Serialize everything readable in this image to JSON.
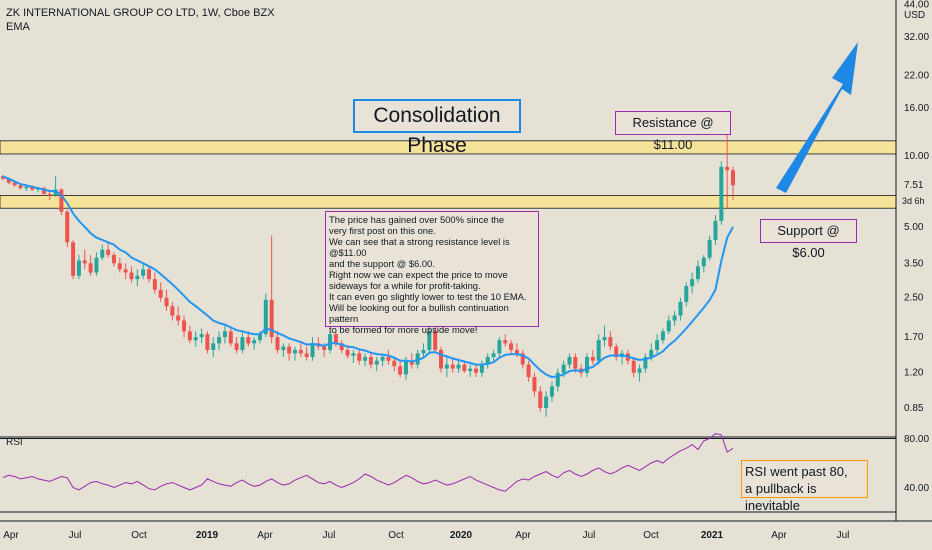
{
  "header": {
    "title": "ZK INTERNATIONAL GROUP CO LTD, 1W, Cboe BZX",
    "indicator": "EMA"
  },
  "annotations": {
    "consolidation": "Consolidation Phase",
    "resistance": "Resistance @ $11.00",
    "support": "Support @ $6.00",
    "note": "The price has gained over 500% since the\nvery first post on this one.\nWe can see that a strong resistance level is @$11.00\nand the support @ $6.00.\nRight now we can expect the price to move\nsideways for a while for profit-taking.\nIt can even go slightly lower to test the 10 EMA.\nWill be looking out for a bullish continuation pattern\nto be formed for more upside move!",
    "rsi_note": "RSI went past 80,\na pullback is inevitable"
  },
  "colors": {
    "background": "#e5e1d5",
    "bull": "#26a69a",
    "bear": "#ef5350",
    "ema": "#2196f3",
    "rsi": "#9c27b0",
    "zone": "#f6e39a",
    "arrow": "#1e88e5"
  },
  "chart_data": {
    "type": "candlestick",
    "y_scale": "log",
    "y_axis_label": "USD",
    "y_ticks": [
      "0.85",
      "1.20",
      "1.70",
      "2.50",
      "3.50",
      "5.00",
      "10.00",
      "16.00",
      "22.00",
      "32.00",
      "44.00"
    ],
    "last_price": "7.51",
    "last_price_countdown": "3d 6h",
    "x_ticks": [
      "Apr",
      "Jul",
      "Oct",
      "2019",
      "Apr",
      "Jul",
      "Oct",
      "2020",
      "Apr",
      "Jul",
      "Oct",
      "2021",
      "Apr",
      "Jul"
    ],
    "resistance_zone": [
      10.2,
      11.6
    ],
    "support_zone": [
      6.0,
      6.8
    ],
    "rsi": {
      "label": "RSI",
      "levels": [
        80,
        20
      ],
      "ticks": [
        "80.00",
        "40.00"
      ],
      "values": [
        48,
        50,
        49,
        47,
        48,
        49,
        47,
        46,
        45,
        47,
        49,
        48,
        40,
        38,
        41,
        44,
        45,
        43,
        42,
        40,
        42,
        44,
        43,
        45,
        42,
        39,
        38,
        41,
        43,
        44,
        42,
        40,
        38,
        40,
        42,
        47,
        45,
        43,
        42,
        41,
        44,
        46,
        43,
        41,
        42,
        45,
        47,
        44,
        42,
        43,
        46,
        48,
        50,
        47,
        44,
        43,
        45,
        42,
        40,
        42,
        44,
        47,
        51,
        49,
        46,
        44,
        42,
        44,
        47,
        50,
        48,
        45,
        43,
        44,
        46,
        44,
        42,
        43,
        45,
        47,
        49,
        46,
        44,
        42,
        40,
        38,
        37,
        41,
        45,
        47,
        46,
        49,
        51,
        53,
        50,
        48,
        52,
        54,
        51,
        49,
        51,
        54,
        56,
        53,
        51,
        53,
        56,
        58,
        56,
        54,
        57,
        60,
        62,
        60,
        64,
        67,
        70,
        72,
        75,
        71,
        78,
        80,
        84,
        83,
        69,
        72
      ]
    },
    "candles": [
      [
        8.2,
        8.3,
        7.9,
        8.0
      ],
      [
        8.0,
        8.1,
        7.6,
        7.7
      ],
      [
        7.7,
        7.8,
        7.4,
        7.5
      ],
      [
        7.5,
        7.6,
        7.2,
        7.3
      ],
      [
        7.3,
        7.5,
        7.1,
        7.4
      ],
      [
        7.4,
        7.5,
        7.1,
        7.2
      ],
      [
        7.2,
        7.4,
        7.0,
        7.3
      ],
      [
        7.3,
        7.4,
        6.8,
        6.9
      ],
      [
        6.9,
        7.1,
        6.5,
        6.8
      ],
      [
        6.8,
        8.2,
        6.7,
        7.2
      ],
      [
        7.2,
        7.3,
        5.6,
        5.8
      ],
      [
        5.8,
        5.9,
        4.1,
        4.3
      ],
      [
        4.3,
        4.4,
        3.0,
        3.1
      ],
      [
        3.1,
        3.8,
        3.0,
        3.6
      ],
      [
        3.6,
        4.0,
        3.3,
        3.5
      ],
      [
        3.5,
        3.8,
        3.1,
        3.2
      ],
      [
        3.2,
        3.9,
        3.1,
        3.7
      ],
      [
        3.7,
        4.2,
        3.6,
        4.0
      ],
      [
        4.0,
        4.3,
        3.7,
        3.8
      ],
      [
        3.8,
        3.9,
        3.4,
        3.5
      ],
      [
        3.5,
        3.7,
        3.2,
        3.3
      ],
      [
        3.3,
        3.5,
        3.0,
        3.2
      ],
      [
        3.2,
        3.4,
        2.9,
        3.0
      ],
      [
        3.0,
        3.3,
        2.8,
        3.1
      ],
      [
        3.1,
        3.5,
        3.0,
        3.3
      ],
      [
        3.3,
        3.4,
        2.9,
        3.0
      ],
      [
        3.0,
        3.2,
        2.6,
        2.7
      ],
      [
        2.7,
        2.9,
        2.4,
        2.5
      ],
      [
        2.5,
        2.7,
        2.2,
        2.3
      ],
      [
        2.3,
        2.4,
        2.0,
        2.1
      ],
      [
        2.1,
        2.3,
        1.9,
        2.0
      ],
      [
        2.0,
        2.1,
        1.7,
        1.8
      ],
      [
        1.8,
        1.9,
        1.6,
        1.65
      ],
      [
        1.65,
        1.8,
        1.55,
        1.7
      ],
      [
        1.7,
        1.85,
        1.6,
        1.75
      ],
      [
        1.75,
        1.8,
        1.45,
        1.5
      ],
      [
        1.5,
        1.7,
        1.4,
        1.6
      ],
      [
        1.6,
        1.8,
        1.5,
        1.7
      ],
      [
        1.7,
        1.9,
        1.6,
        1.8
      ],
      [
        1.8,
        1.85,
        1.55,
        1.6
      ],
      [
        1.6,
        1.7,
        1.45,
        1.5
      ],
      [
        1.5,
        1.8,
        1.45,
        1.7
      ],
      [
        1.7,
        1.8,
        1.55,
        1.6
      ],
      [
        1.6,
        1.7,
        1.5,
        1.65
      ],
      [
        1.65,
        1.8,
        1.6,
        1.75
      ],
      [
        1.75,
        2.6,
        1.7,
        2.45
      ],
      [
        2.45,
        4.6,
        1.6,
        1.7
      ],
      [
        1.7,
        1.8,
        1.45,
        1.5
      ],
      [
        1.5,
        1.6,
        1.4,
        1.55
      ],
      [
        1.55,
        1.6,
        1.35,
        1.45
      ],
      [
        1.45,
        1.55,
        1.35,
        1.5
      ],
      [
        1.5,
        1.6,
        1.4,
        1.45
      ],
      [
        1.45,
        1.55,
        1.35,
        1.4
      ],
      [
        1.4,
        1.7,
        1.35,
        1.6
      ],
      [
        1.6,
        1.7,
        1.5,
        1.55
      ],
      [
        1.55,
        1.6,
        1.4,
        1.5
      ],
      [
        1.5,
        1.8,
        1.45,
        1.75
      ],
      [
        1.75,
        1.8,
        1.55,
        1.6
      ],
      [
        1.6,
        1.65,
        1.45,
        1.5
      ],
      [
        1.5,
        1.55,
        1.38,
        1.42
      ],
      [
        1.42,
        1.5,
        1.32,
        1.45
      ],
      [
        1.45,
        1.5,
        1.3,
        1.35
      ],
      [
        1.35,
        1.45,
        1.28,
        1.4
      ],
      [
        1.4,
        1.45,
        1.25,
        1.3
      ],
      [
        1.3,
        1.4,
        1.22,
        1.35
      ],
      [
        1.35,
        1.45,
        1.28,
        1.4
      ],
      [
        1.4,
        1.5,
        1.3,
        1.35
      ],
      [
        1.35,
        1.4,
        1.22,
        1.28
      ],
      [
        1.28,
        1.35,
        1.15,
        1.18
      ],
      [
        1.18,
        1.4,
        1.12,
        1.35
      ],
      [
        1.35,
        1.45,
        1.25,
        1.3
      ],
      [
        1.3,
        1.5,
        1.25,
        1.45
      ],
      [
        1.45,
        1.6,
        1.4,
        1.5
      ],
      [
        1.5,
        1.9,
        1.45,
        1.8
      ],
      [
        1.8,
        2.1,
        1.45,
        1.5
      ],
      [
        1.5,
        1.55,
        1.2,
        1.25
      ],
      [
        1.25,
        1.4,
        1.15,
        1.3
      ],
      [
        1.3,
        1.4,
        1.2,
        1.25
      ],
      [
        1.25,
        1.35,
        1.2,
        1.3
      ],
      [
        1.3,
        1.35,
        1.2,
        1.22
      ],
      [
        1.22,
        1.3,
        1.15,
        1.25
      ],
      [
        1.25,
        1.3,
        1.15,
        1.2
      ],
      [
        1.2,
        1.35,
        1.15,
        1.3
      ],
      [
        1.3,
        1.45,
        1.25,
        1.4
      ],
      [
        1.4,
        1.5,
        1.35,
        1.45
      ],
      [
        1.45,
        1.7,
        1.4,
        1.65
      ],
      [
        1.65,
        1.75,
        1.55,
        1.6
      ],
      [
        1.6,
        1.65,
        1.45,
        1.5
      ],
      [
        1.5,
        1.6,
        1.4,
        1.45
      ],
      [
        1.45,
        1.5,
        1.25,
        1.3
      ],
      [
        1.3,
        1.35,
        1.1,
        1.15
      ],
      [
        1.15,
        1.2,
        0.95,
        1.0
      ],
      [
        1.0,
        1.05,
        0.82,
        0.85
      ],
      [
        0.85,
        1.0,
        0.78,
        0.95
      ],
      [
        0.95,
        1.1,
        0.9,
        1.05
      ],
      [
        1.05,
        1.25,
        1.0,
        1.2
      ],
      [
        1.2,
        1.35,
        1.15,
        1.3
      ],
      [
        1.3,
        1.45,
        1.25,
        1.4
      ],
      [
        1.4,
        1.45,
        1.2,
        1.25
      ],
      [
        1.25,
        1.3,
        1.15,
        1.2
      ],
      [
        1.2,
        1.45,
        1.15,
        1.4
      ],
      [
        1.4,
        1.5,
        1.3,
        1.35
      ],
      [
        1.35,
        1.75,
        1.3,
        1.65
      ],
      [
        1.65,
        1.9,
        1.55,
        1.7
      ],
      [
        1.7,
        1.8,
        1.5,
        1.55
      ],
      [
        1.55,
        1.6,
        1.35,
        1.4
      ],
      [
        1.4,
        1.5,
        1.3,
        1.45
      ],
      [
        1.45,
        1.5,
        1.3,
        1.35
      ],
      [
        1.35,
        1.4,
        1.15,
        1.2
      ],
      [
        1.2,
        1.3,
        1.1,
        1.25
      ],
      [
        1.25,
        1.45,
        1.2,
        1.4
      ],
      [
        1.4,
        1.6,
        1.35,
        1.5
      ],
      [
        1.5,
        1.75,
        1.45,
        1.65
      ],
      [
        1.65,
        1.85,
        1.6,
        1.8
      ],
      [
        1.8,
        2.1,
        1.75,
        2.0
      ],
      [
        2.0,
        2.2,
        1.9,
        2.1
      ],
      [
        2.1,
        2.5,
        2.0,
        2.4
      ],
      [
        2.4,
        2.9,
        2.3,
        2.8
      ],
      [
        2.8,
        3.2,
        2.6,
        3.0
      ],
      [
        3.0,
        3.6,
        2.9,
        3.4
      ],
      [
        3.4,
        3.8,
        3.2,
        3.7
      ],
      [
        3.7,
        4.6,
        3.6,
        4.4
      ],
      [
        4.4,
        5.6,
        4.2,
        5.3
      ],
      [
        5.3,
        9.5,
        5.1,
        9.0
      ],
      [
        9.0,
        15.0,
        6.0,
        8.7
      ],
      [
        8.7,
        9.0,
        6.5,
        7.51
      ]
    ],
    "ema": [
      8.2,
      8.0,
      7.8,
      7.6,
      7.5,
      7.4,
      7.3,
      7.2,
      7.1,
      7.1,
      6.8,
      6.3,
      5.7,
      5.3,
      5.0,
      4.7,
      4.5,
      4.4,
      4.3,
      4.2,
      4.0,
      3.9,
      3.7,
      3.6,
      3.5,
      3.4,
      3.3,
      3.15,
      3.0,
      2.85,
      2.7,
      2.55,
      2.4,
      2.3,
      2.2,
      2.1,
      2.0,
      1.95,
      1.92,
      1.87,
      1.82,
      1.8,
      1.77,
      1.75,
      1.75,
      1.85,
      1.82,
      1.77,
      1.73,
      1.68,
      1.65,
      1.62,
      1.58,
      1.59,
      1.58,
      1.56,
      1.6,
      1.6,
      1.58,
      1.55,
      1.54,
      1.51,
      1.49,
      1.46,
      1.44,
      1.43,
      1.42,
      1.39,
      1.35,
      1.35,
      1.34,
      1.36,
      1.39,
      1.46,
      1.47,
      1.43,
      1.41,
      1.38,
      1.36,
      1.34,
      1.32,
      1.3,
      1.3,
      1.31,
      1.33,
      1.39,
      1.43,
      1.44,
      1.44,
      1.42,
      1.38,
      1.3,
      1.23,
      1.18,
      1.15,
      1.16,
      1.18,
      1.22,
      1.23,
      1.22,
      1.25,
      1.27,
      1.33,
      1.39,
      1.42,
      1.42,
      1.42,
      1.41,
      1.38,
      1.36,
      1.37,
      1.39,
      1.43,
      1.48,
      1.57,
      1.64,
      1.74,
      1.85,
      1.98,
      2.12,
      2.27,
      2.44,
      2.71,
      3.58,
      4.5,
      5.0
    ]
  }
}
